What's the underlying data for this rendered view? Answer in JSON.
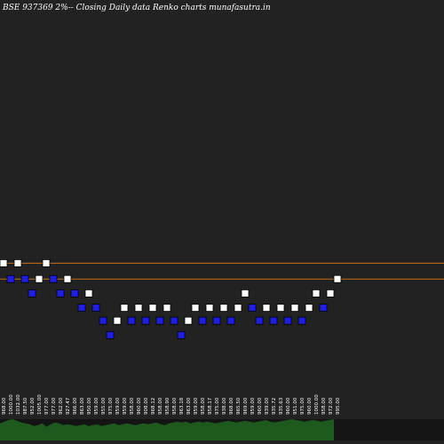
{
  "chart_data": {
    "type": "renko",
    "title": "BSE 937369 2%-- Closing Daily data Renko charts munafasutra.in",
    "colors": {
      "background": "#222222",
      "up_brick": "#ffffff",
      "down_brick": "#1e1ee6",
      "brick_border": "#000000",
      "reference_line": "#c87014",
      "volume": "#1e5a1e",
      "volume_dark": "#141414"
    },
    "reference_levels": [
      967,
      978
    ],
    "ylim": [
      880,
      1155
    ],
    "bricks": [
      {
        "dir": "up",
        "price": 978
      },
      {
        "dir": "down",
        "price": 967
      },
      {
        "dir": "up",
        "price": 978
      },
      {
        "dir": "down",
        "price": 967
      },
      {
        "dir": "down",
        "price": 957
      },
      {
        "dir": "up",
        "price": 967
      },
      {
        "dir": "up",
        "price": 978
      },
      {
        "dir": "down",
        "price": 967
      },
      {
        "dir": "down",
        "price": 957
      },
      {
        "dir": "up",
        "price": 967
      },
      {
        "dir": "down",
        "price": 957
      },
      {
        "dir": "down",
        "price": 947
      },
      {
        "dir": "up",
        "price": 957
      },
      {
        "dir": "down",
        "price": 947
      },
      {
        "dir": "down",
        "price": 938
      },
      {
        "dir": "down",
        "price": 928
      },
      {
        "dir": "up",
        "price": 938
      },
      {
        "dir": "up",
        "price": 947
      },
      {
        "dir": "down",
        "price": 938
      },
      {
        "dir": "up",
        "price": 947
      },
      {
        "dir": "down",
        "price": 938
      },
      {
        "dir": "up",
        "price": 947
      },
      {
        "dir": "down",
        "price": 938
      },
      {
        "dir": "up",
        "price": 947
      },
      {
        "dir": "down",
        "price": 938
      },
      {
        "dir": "down",
        "price": 928
      },
      {
        "dir": "up",
        "price": 938
      },
      {
        "dir": "up",
        "price": 947
      },
      {
        "dir": "down",
        "price": 938
      },
      {
        "dir": "up",
        "price": 947
      },
      {
        "dir": "down",
        "price": 938
      },
      {
        "dir": "up",
        "price": 947
      },
      {
        "dir": "down",
        "price": 938
      },
      {
        "dir": "up",
        "price": 947
      },
      {
        "dir": "up",
        "price": 957
      },
      {
        "dir": "down",
        "price": 947
      },
      {
        "dir": "down",
        "price": 938
      },
      {
        "dir": "up",
        "price": 947
      },
      {
        "dir": "down",
        "price": 938
      },
      {
        "dir": "up",
        "price": 947
      },
      {
        "dir": "down",
        "price": 938
      },
      {
        "dir": "up",
        "price": 947
      },
      {
        "dir": "down",
        "price": 938
      },
      {
        "dir": "up",
        "price": 947
      },
      {
        "dir": "up",
        "price": 957
      },
      {
        "dir": "down",
        "price": 947
      },
      {
        "dir": "up",
        "price": 957
      },
      {
        "dir": "up",
        "price": 967
      }
    ],
    "price_labels": [
      "968.00",
      "1000.00",
      "1032.00",
      "987.50",
      "952.00",
      "1005.00",
      "977.00",
      "977.00",
      "962.00",
      "927.47",
      "966.00",
      "863.00",
      "950.00",
      "959.00",
      "955.00",
      "975.00",
      "959.00",
      "959.00",
      "958.00",
      "960.00",
      "908.00",
      "968.12",
      "958.00",
      "958.90",
      "958.00",
      "963.18",
      "963.00",
      "959.00",
      "958.00",
      "958.17",
      "975.00",
      "938.00",
      "968.00",
      "965.50",
      "969.00",
      "959.00",
      "960.00",
      "939.00",
      "935.72",
      "935.63",
      "960.00",
      "951.00",
      "975.00",
      "960.00",
      "1000.00",
      "958.00",
      "972.00",
      "995.00"
    ],
    "volume": [
      20,
      22,
      24,
      25,
      23,
      21,
      20,
      19,
      17,
      18,
      20,
      16,
      19,
      21,
      20,
      18,
      19,
      18,
      17,
      18,
      19,
      17,
      18,
      19,
      17,
      18,
      19,
      20,
      18,
      19,
      20,
      19,
      18,
      19,
      20,
      19,
      20,
      21,
      19,
      18,
      20,
      21,
      22,
      21,
      22,
      20,
      21,
      22,
      21,
      22,
      21,
      20,
      21,
      22,
      23,
      22,
      21,
      22,
      23,
      22,
      21,
      22,
      23,
      24,
      22,
      21,
      22,
      23,
      24,
      25,
      24,
      23,
      22,
      23,
      24,
      23,
      22,
      23,
      24,
      25
    ]
  }
}
